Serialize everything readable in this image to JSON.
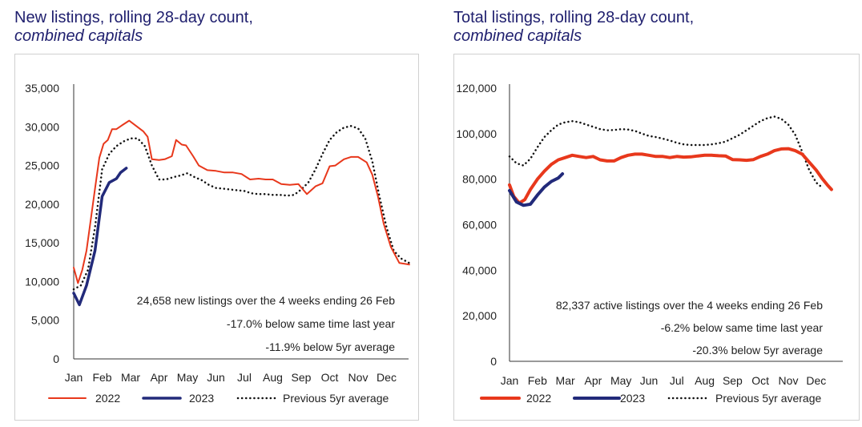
{
  "chart_data": [
    {
      "type": "line",
      "title": "New listings, rolling 28-day count,",
      "title_line2": "combined capitals",
      "categories": [
        "Jan",
        "Feb",
        "Mar",
        "Apr",
        "May",
        "Jun",
        "Jul",
        "Aug",
        "Sep",
        "Oct",
        "Nov",
        "Dec"
      ],
      "yticks": [
        "35,000",
        "30,000",
        "25,000",
        "20,000",
        "15,000",
        "10,000",
        "5,000",
        "0"
      ],
      "ylim": [
        0,
        35000
      ],
      "series": [
        {
          "name": "2022",
          "color": "#e8381c",
          "style": "solid",
          "x": [
            0,
            0.15,
            0.3,
            0.45,
            0.6,
            0.75,
            0.9,
            1.05,
            1.2,
            1.35,
            1.5,
            1.7,
            1.95,
            2.2,
            2.45,
            2.6,
            2.75,
            3.0,
            3.2,
            3.45,
            3.6,
            3.8,
            3.95,
            4.2,
            4.4,
            4.55,
            4.7,
            5.0,
            5.3,
            5.6,
            5.9,
            6.2,
            6.5,
            6.75,
            7.0,
            7.3,
            7.6,
            7.9,
            8.2,
            8.5,
            8.75,
            9.0,
            9.2,
            9.5,
            9.75,
            10.0,
            10.3,
            10.5,
            10.7,
            10.9,
            11.15,
            11.45,
            11.8
          ],
          "values": [
            11800,
            9800,
            11500,
            14000,
            18000,
            22000,
            26000,
            27800,
            28300,
            29700,
            29700,
            30200,
            30800,
            30100,
            29400,
            28700,
            25800,
            25700,
            25800,
            26200,
            28300,
            27700,
            27600,
            26200,
            25000,
            24700,
            24400,
            24300,
            24100,
            24100,
            23900,
            23200,
            23300,
            23200,
            23200,
            22600,
            22500,
            22600,
            21300,
            22300,
            22700,
            24900,
            25000,
            25800,
            26100,
            26100,
            25400,
            23800,
            21000,
            17500,
            14500,
            12400,
            12200
          ]
        },
        {
          "name": "2023",
          "color": "#222a7a",
          "style": "solid",
          "x": [
            0,
            0.2,
            0.45,
            0.75,
            1.0,
            1.25,
            1.5,
            1.65,
            1.85
          ],
          "values": [
            8500,
            7000,
            9500,
            14000,
            21000,
            22800,
            23300,
            24100,
            24658
          ]
        },
        {
          "name": "Previous 5yr average",
          "color": "#111111",
          "style": "dotted",
          "x": [
            0,
            0.25,
            0.5,
            0.75,
            1.0,
            1.25,
            1.5,
            1.75,
            2.0,
            2.25,
            2.5,
            2.75,
            3.0,
            3.25,
            3.5,
            3.75,
            4.0,
            4.25,
            4.5,
            4.75,
            5.0,
            5.25,
            5.5,
            5.75,
            6.0,
            6.25,
            6.5,
            6.75,
            7.0,
            7.25,
            7.5,
            7.75,
            8.0,
            8.25,
            8.5,
            8.75,
            9.0,
            9.25,
            9.5,
            9.75,
            10.0,
            10.25,
            10.5,
            10.75,
            11.0,
            11.25,
            11.5,
            11.8
          ],
          "values": [
            9000,
            9500,
            11500,
            17000,
            24500,
            26500,
            27500,
            28100,
            28500,
            28500,
            27500,
            25000,
            23200,
            23200,
            23500,
            23700,
            24000,
            23500,
            23100,
            22500,
            22100,
            22000,
            21900,
            21800,
            21700,
            21400,
            21300,
            21300,
            21200,
            21200,
            21100,
            21200,
            21900,
            22800,
            24500,
            26500,
            28300,
            29300,
            29900,
            30100,
            29800,
            28500,
            25500,
            21000,
            17000,
            14000,
            13000,
            12400
          ]
        }
      ],
      "annotations": [
        "24,658 new listings over the 4 weeks ending 26 Feb",
        "-17.0% below same time last year",
        "-11.9% below 5yr average"
      ],
      "legend": [
        "2022",
        "2023",
        "Previous 5yr average"
      ]
    },
    {
      "type": "line",
      "title": "Total listings, rolling 28-day count,",
      "title_line2": "combined capitals",
      "categories": [
        "Jan",
        "Feb",
        "Mar",
        "Apr",
        "May",
        "Jun",
        "Jul",
        "Aug",
        "Sep",
        "Oct",
        "Nov",
        "Dec"
      ],
      "yticks": [
        "120,000",
        "100,000",
        "80,000",
        "60,000",
        "40,000",
        "20,000",
        "0"
      ],
      "ylim": [
        0,
        120000
      ],
      "series": [
        {
          "name": "2022",
          "color": "#e8381c",
          "style": "solid",
          "x": [
            0,
            0.15,
            0.35,
            0.55,
            0.75,
            1.0,
            1.25,
            1.5,
            1.75,
            2.0,
            2.25,
            2.5,
            2.75,
            3.0,
            3.25,
            3.5,
            3.75,
            4.0,
            4.25,
            4.5,
            4.75,
            5.0,
            5.25,
            5.5,
            5.75,
            6.0,
            6.25,
            6.5,
            6.75,
            7.0,
            7.25,
            7.5,
            7.75,
            8.0,
            8.25,
            8.5,
            8.75,
            9.0,
            9.25,
            9.5,
            9.75,
            10.0,
            10.25,
            10.5,
            10.75,
            11.0,
            11.2,
            11.4,
            11.55
          ],
          "values": [
            77500,
            72500,
            69500,
            71000,
            75500,
            80000,
            83500,
            86500,
            88500,
            89500,
            90500,
            90000,
            89500,
            90000,
            88500,
            88000,
            88000,
            89500,
            90500,
            91000,
            91000,
            90500,
            90000,
            90000,
            89500,
            90000,
            89700,
            89800,
            90200,
            90500,
            90500,
            90300,
            90200,
            88600,
            88500,
            88300,
            88600,
            90000,
            91000,
            92500,
            93300,
            93400,
            92500,
            91000,
            87500,
            84000,
            80500,
            77500,
            75500
          ]
        },
        {
          "name": "2023",
          "color": "#222a7a",
          "style": "solid",
          "x": [
            0,
            0.25,
            0.5,
            0.75,
            1.0,
            1.25,
            1.5,
            1.75,
            1.9
          ],
          "values": [
            75000,
            70000,
            68500,
            69000,
            73000,
            76500,
            79000,
            80500,
            82337
          ]
        },
        {
          "name": "Previous 5yr average",
          "color": "#111111",
          "style": "dotted",
          "x": [
            0,
            0.25,
            0.5,
            0.75,
            1.0,
            1.25,
            1.5,
            1.75,
            2.0,
            2.25,
            2.5,
            2.75,
            3.0,
            3.25,
            3.5,
            3.75,
            4.0,
            4.25,
            4.5,
            4.75,
            5.0,
            5.25,
            5.5,
            5.75,
            6.0,
            6.25,
            6.5,
            6.75,
            7.0,
            7.25,
            7.5,
            7.75,
            8.0,
            8.25,
            8.5,
            8.75,
            9.0,
            9.25,
            9.5,
            9.75,
            10.0,
            10.25,
            10.5,
            10.75,
            11.0,
            11.25
          ],
          "values": [
            90000,
            87000,
            86000,
            89000,
            94000,
            98500,
            101500,
            104000,
            105000,
            105500,
            105000,
            104000,
            103000,
            102000,
            101500,
            101600,
            102000,
            101800,
            101200,
            100000,
            99000,
            98500,
            97800,
            97000,
            96000,
            95300,
            95000,
            95000,
            95000,
            95300,
            95800,
            96500,
            98000,
            99500,
            101500,
            103500,
            105500,
            106800,
            107500,
            106500,
            104000,
            99500,
            92000,
            84000,
            78500,
            76000
          ]
        }
      ],
      "annotations": [
        "82,337 active listings over the 4 weeks ending 26 Feb",
        "-6.2% below same time last year",
        "-20.3% below 5yr average"
      ],
      "legend": [
        "2022",
        "2023",
        "Previous 5yr average"
      ]
    }
  ]
}
